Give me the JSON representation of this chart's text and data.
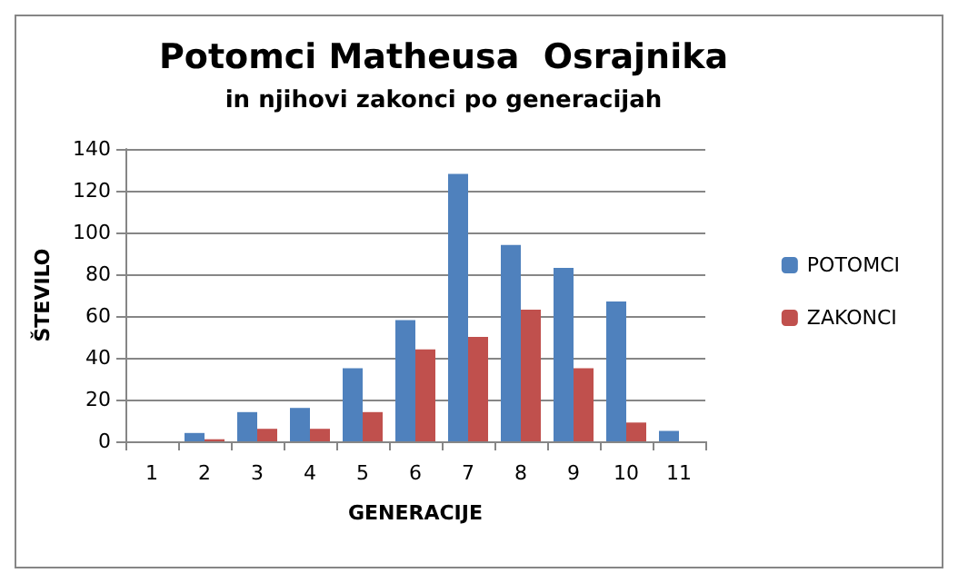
{
  "chart_data": {
    "type": "bar",
    "title": "Potomci Matheusa  Osrajnika",
    "subtitle": "in njihovi zakonci po generacijah",
    "xlabel": "GENERACIJE",
    "ylabel": "ŠTEVILO",
    "categories": [
      "1",
      "2",
      "3",
      "4",
      "5",
      "6",
      "7",
      "8",
      "9",
      "10",
      "11"
    ],
    "series": [
      {
        "name": "POTOMCI",
        "color": "#4f81bd",
        "values": [
          0,
          4,
          14,
          16,
          35,
          58,
          128,
          94,
          83,
          67,
          5
        ]
      },
      {
        "name": "ZAKONCI",
        "color": "#c0504d",
        "values": [
          0,
          1,
          6,
          6,
          14,
          44,
          50,
          63,
          35,
          9,
          0
        ]
      }
    ],
    "ylim": [
      0,
      140
    ],
    "yticks": [
      0,
      20,
      40,
      60,
      80,
      100,
      120,
      140
    ],
    "grid": "y",
    "legend": "right"
  }
}
